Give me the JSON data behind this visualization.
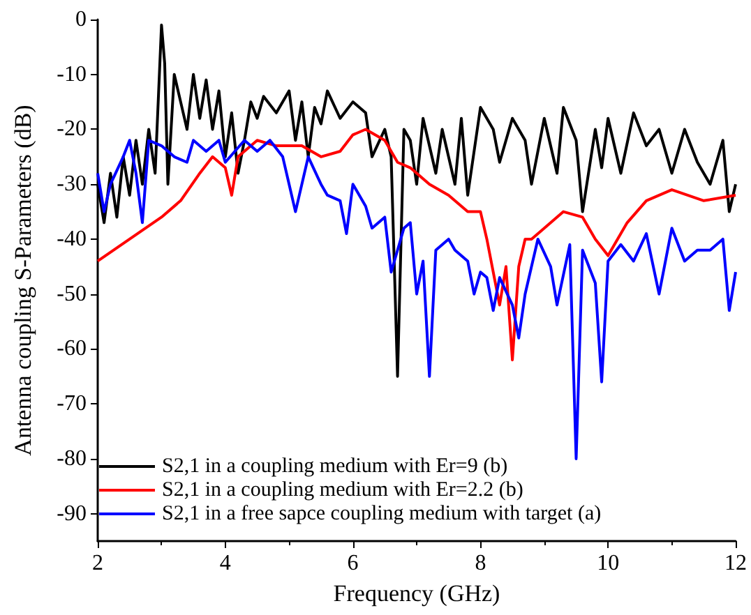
{
  "chart_data": {
    "type": "line",
    "xlabel": "Frequency (GHz)",
    "ylabel": "Antenna coupling S-Parameters (dB)",
    "xlim": [
      2,
      12
    ],
    "xticks": [
      2,
      4,
      6,
      8,
      10,
      12
    ],
    "ylim": [
      -95,
      0
    ],
    "yticks": [
      0,
      -10,
      -20,
      -30,
      -40,
      -50,
      -60,
      -70,
      -80,
      -90
    ],
    "grid": false,
    "legend": "bottom left",
    "marker": "none",
    "line_style": "solid",
    "series": [
      {
        "name": "S2,1 in a coupling medium with Er=9 (b)",
        "color": "#000000",
        "x": [
          2.0,
          2.1,
          2.2,
          2.3,
          2.4,
          2.5,
          2.6,
          2.7,
          2.8,
          2.9,
          3.0,
          3.05,
          3.1,
          3.2,
          3.3,
          3.4,
          3.5,
          3.6,
          3.7,
          3.8,
          3.9,
          4.0,
          4.1,
          4.2,
          4.3,
          4.4,
          4.5,
          4.6,
          4.8,
          5.0,
          5.1,
          5.2,
          5.3,
          5.4,
          5.5,
          5.6,
          5.8,
          6.0,
          6.2,
          6.3,
          6.5,
          6.6,
          6.7,
          6.8,
          6.9,
          7.0,
          7.1,
          7.3,
          7.4,
          7.6,
          7.7,
          7.8,
          8.0,
          8.2,
          8.3,
          8.5,
          8.7,
          8.8,
          9.0,
          9.2,
          9.3,
          9.5,
          9.6,
          9.8,
          9.9,
          10.0,
          10.2,
          10.4,
          10.6,
          10.8,
          11.0,
          11.2,
          11.4,
          11.6,
          11.8,
          11.9,
          12.0
        ],
        "values": [
          -30,
          -37,
          -28,
          -36,
          -25,
          -32,
          -22,
          -30,
          -20,
          -28,
          -1,
          -8,
          -30,
          -10,
          -15,
          -20,
          -10,
          -18,
          -11,
          -20,
          -13,
          -25,
          -17,
          -28,
          -22,
          -15,
          -18,
          -14,
          -17,
          -13,
          -22,
          -15,
          -25,
          -16,
          -19,
          -13,
          -18,
          -15,
          -17,
          -25,
          -20,
          -25,
          -65,
          -20,
          -22,
          -30,
          -18,
          -28,
          -20,
          -30,
          -18,
          -32,
          -16,
          -20,
          -26,
          -18,
          -22,
          -30,
          -18,
          -28,
          -16,
          -22,
          -35,
          -20,
          -27,
          -18,
          -28,
          -17,
          -23,
          -20,
          -28,
          -20,
          -26,
          -30,
          -22,
          -35,
          -30
        ]
      },
      {
        "name": "S2,1 in a coupling medium with Er=2.2 (b)",
        "color": "#ff0000",
        "x": [
          2.0,
          2.5,
          3.0,
          3.3,
          3.6,
          3.8,
          4.0,
          4.1,
          4.2,
          4.5,
          4.8,
          5.2,
          5.5,
          5.8,
          6.0,
          6.2,
          6.5,
          6.7,
          6.9,
          7.2,
          7.5,
          7.8,
          8.0,
          8.1,
          8.3,
          8.4,
          8.5,
          8.6,
          8.7,
          8.8,
          9.0,
          9.3,
          9.6,
          9.8,
          10.0,
          10.3,
          10.6,
          11.0,
          11.5,
          12.0
        ],
        "values": [
          -44,
          -40,
          -36,
          -33,
          -28,
          -25,
          -27,
          -32,
          -25,
          -22,
          -23,
          -23,
          -25,
          -24,
          -21,
          -20,
          -22,
          -26,
          -27,
          -30,
          -32,
          -35,
          -35,
          -40,
          -52,
          -45,
          -62,
          -45,
          -40,
          -40,
          -38,
          -35,
          -36,
          -40,
          -43,
          -37,
          -33,
          -31,
          -33,
          -32
        ]
      },
      {
        "name": "S2,1 in a free sapce coupling medium with target (a)",
        "color": "#0000ff",
        "x": [
          2.0,
          2.1,
          2.2,
          2.4,
          2.5,
          2.6,
          2.7,
          2.8,
          3.0,
          3.2,
          3.4,
          3.5,
          3.7,
          3.9,
          4.0,
          4.3,
          4.5,
          4.7,
          4.9,
          5.1,
          5.3,
          5.5,
          5.6,
          5.8,
          5.9,
          6.0,
          6.2,
          6.3,
          6.5,
          6.6,
          6.8,
          6.9,
          7.0,
          7.1,
          7.2,
          7.3,
          7.5,
          7.6,
          7.8,
          7.9,
          8.0,
          8.1,
          8.2,
          8.3,
          8.5,
          8.6,
          8.7,
          8.9,
          9.1,
          9.2,
          9.4,
          9.5,
          9.6,
          9.8,
          9.9,
          10.0,
          10.2,
          10.4,
          10.6,
          10.8,
          11.0,
          11.2,
          11.4,
          11.6,
          11.8,
          11.9,
          12.0
        ],
        "values": [
          -28,
          -35,
          -30,
          -25,
          -22,
          -28,
          -37,
          -22,
          -23,
          -25,
          -26,
          -22,
          -24,
          -22,
          -26,
          -22,
          -24,
          -22,
          -25,
          -35,
          -25,
          -30,
          -32,
          -33,
          -39,
          -30,
          -34,
          -38,
          -36,
          -46,
          -38,
          -37,
          -50,
          -44,
          -65,
          -42,
          -40,
          -42,
          -44,
          -50,
          -46,
          -47,
          -53,
          -47,
          -52,
          -58,
          -50,
          -40,
          -45,
          -52,
          -41,
          -80,
          -42,
          -48,
          -66,
          -44,
          -41,
          -44,
          -39,
          -50,
          -38,
          -44,
          -42,
          -42,
          -40,
          -53,
          -46
        ]
      }
    ]
  }
}
